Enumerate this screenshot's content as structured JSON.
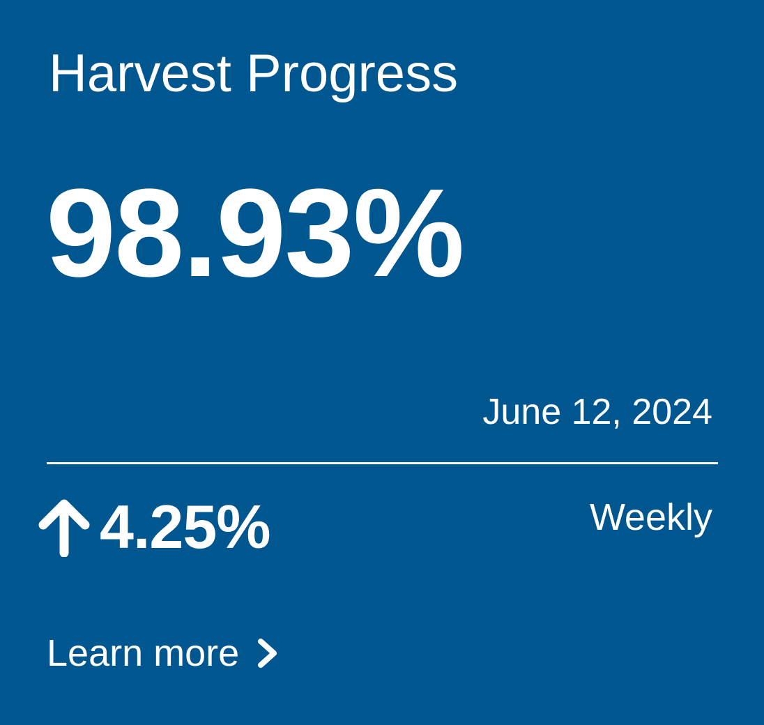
{
  "card": {
    "title": "Harvest Progress",
    "value": "98.93%",
    "progress_percent": 98.93,
    "date": "June 12, 2024",
    "change": {
      "icon": "arrow-up-icon",
      "value": "4.25%",
      "direction": "up"
    },
    "period": "Weekly",
    "link": {
      "label": "Learn more",
      "icon": "chevron-right-icon"
    }
  },
  "colors": {
    "background": "#00568f",
    "text": "#ffffff"
  }
}
